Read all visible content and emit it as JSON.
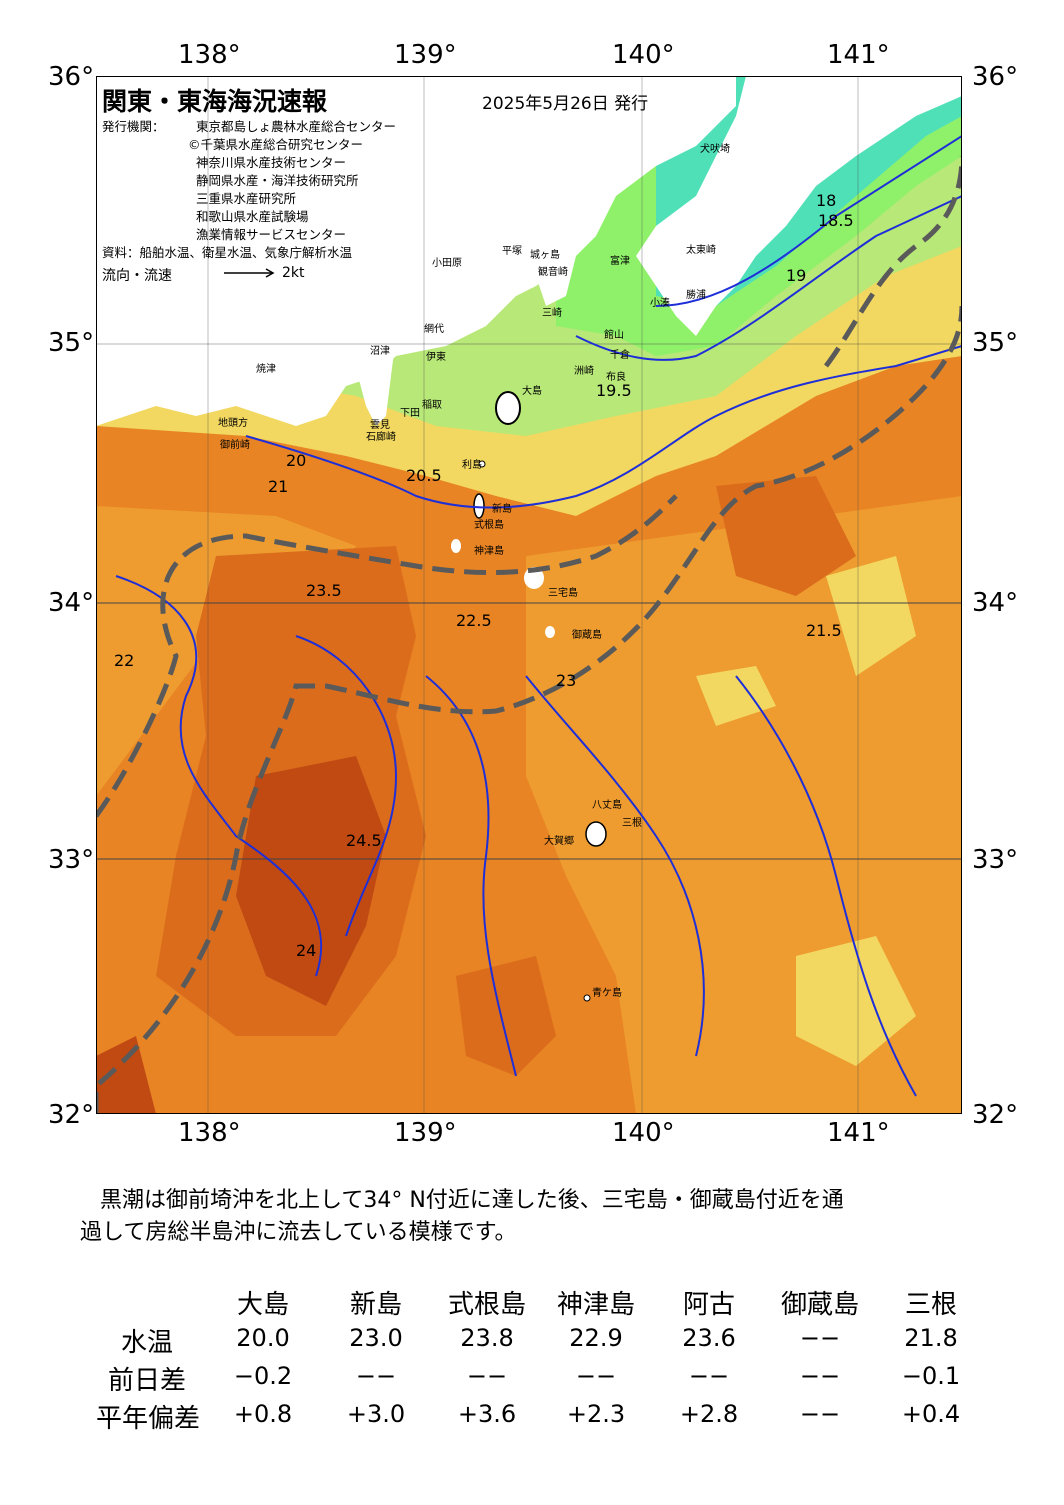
{
  "header": {
    "title": "関東・東海海況速報",
    "date": "2025年5月26日 発行",
    "issuer_label": "発行機関：",
    "issuers": [
      "東京都島しょ農林水産総合センター",
      "©千葉県水産総合研究センター",
      "神奈川県水産技術センター",
      "静岡県水産・海洋技術研究所",
      "三重県水産研究所",
      "和歌山県水産試験場",
      "漁業情報サービスセンター"
    ],
    "source": "資料：船舶水温、衛星水温、気象庁解析水温",
    "flow_label": "流向・流速",
    "flow_scale": "2kt"
  },
  "axes": {
    "lon_ticks": [
      "138°",
      "139°",
      "140°",
      "141°"
    ],
    "lat_ticks": [
      "36°",
      "35°",
      "34°",
      "33°",
      "32°"
    ]
  },
  "map": {
    "place_names": [
      "犬吠埼",
      "太東崎",
      "勝浦",
      "小湊",
      "館山",
      "千倉",
      "布良",
      "洲崎",
      "富津",
      "観音崎",
      "城ヶ島",
      "三崎",
      "平塚",
      "小田原",
      "伊東",
      "網代",
      "稲取",
      "下田",
      "石廊崎",
      "雲見",
      "沼津",
      "焼津",
      "御前崎",
      "地頭方",
      "大島",
      "利島",
      "新島",
      "式根島",
      "神津島",
      "三宅島",
      "御蔵島",
      "八丈島",
      "三根",
      "大賀郷",
      "青ケ島"
    ],
    "isotherm_labels": [
      "18",
      "18.5",
      "19",
      "19.5",
      "20",
      "20.5",
      "21",
      "21.5",
      "22",
      "22.5",
      "23",
      "23.5",
      "24",
      "24.5"
    ],
    "colors": {
      "t18": "#4fe0b8",
      "t19": "#8ff06a",
      "t20": "#b8e878",
      "t21": "#f2d860",
      "t22": "#f0b040",
      "t22_5": "#ee9c30",
      "t23": "#e88424",
      "t23_5": "#da6c1c",
      "t24": "#c04a12",
      "land": "#ffffff",
      "isotherm_line": "#1f2fd8",
      "kuroshio_axis": "#5a5a5a"
    }
  },
  "summary": {
    "text_line1": "黒潮は御前埼沖を北上して34° N付近に達した後、三宅島・御蔵島付近を通",
    "text_line2": "過して房総半島沖に流去している模様です。"
  },
  "table": {
    "columns": [
      "大島",
      "新島",
      "式根島",
      "神津島",
      "阿古",
      "御蔵島",
      "三根"
    ],
    "rows": [
      {
        "label": "水温",
        "values": [
          "20.0",
          "23.0",
          "23.8",
          "22.9",
          "23.6",
          "−−",
          "21.8"
        ]
      },
      {
        "label": "前日差",
        "values": [
          "−0.2",
          "−−",
          "−−",
          "−−",
          "−−",
          "−−",
          "−0.1"
        ]
      },
      {
        "label": "平年偏差",
        "values": [
          "+0.8",
          "+3.0",
          "+3.6",
          "+2.3",
          "+2.8",
          "−−",
          "+0.4"
        ]
      }
    ]
  }
}
